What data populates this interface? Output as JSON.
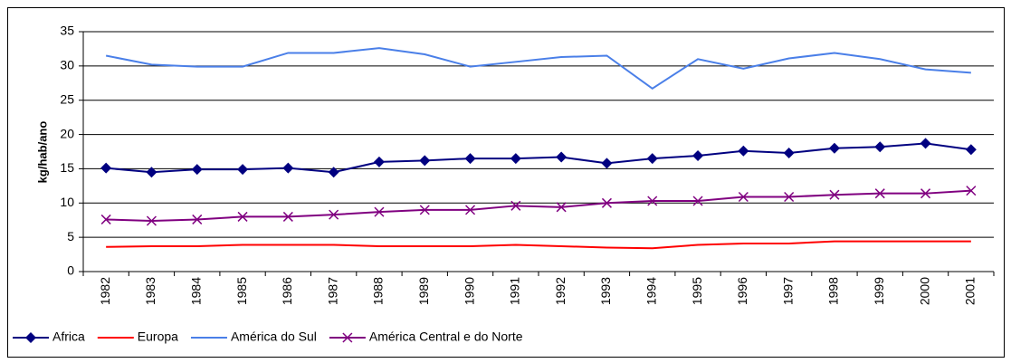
{
  "chart_data": {
    "type": "line",
    "y_label": "kg/hab/ano",
    "categories": [
      "1982",
      "1983",
      "1984",
      "1985",
      "1986",
      "1987",
      "1988",
      "1989",
      "1990",
      "1991",
      "1992",
      "1993",
      "1994",
      "1995",
      "1996",
      "1997",
      "1998",
      "1999",
      "2000",
      "2001"
    ],
    "series": [
      {
        "name": "Africa",
        "color": "#000080",
        "marker": "diamond",
        "values": [
          15.1,
          14.5,
          14.9,
          14.9,
          15.1,
          14.5,
          16.0,
          16.2,
          16.5,
          16.5,
          16.7,
          15.8,
          16.5,
          16.9,
          17.6,
          17.3,
          18.0,
          18.2,
          18.7,
          17.8
        ]
      },
      {
        "name": "Europa",
        "color": "#ff0000",
        "marker": "none",
        "values": [
          3.6,
          3.7,
          3.7,
          3.9,
          3.9,
          3.9,
          3.7,
          3.7,
          3.7,
          3.9,
          3.7,
          3.5,
          3.4,
          3.9,
          4.1,
          4.1,
          4.4,
          4.4,
          4.4,
          4.4
        ]
      },
      {
        "name": "América do Sul",
        "color": "#4a7fe8",
        "marker": "none",
        "values": [
          31.5,
          30.2,
          29.9,
          29.9,
          31.9,
          31.9,
          32.6,
          31.7,
          29.9,
          30.6,
          31.3,
          31.5,
          26.7,
          31.0,
          29.6,
          31.1,
          31.9,
          31.0,
          29.5,
          29.0
        ]
      },
      {
        "name": "América Central e do Norte",
        "color": "#800080",
        "marker": "x",
        "values": [
          7.6,
          7.4,
          7.6,
          8.0,
          8.0,
          8.3,
          8.7,
          9.0,
          9.0,
          9.6,
          9.4,
          10.0,
          10.3,
          10.3,
          10.9,
          10.9,
          11.2,
          11.4,
          11.4,
          11.8
        ]
      }
    ],
    "ylim": [
      0,
      35
    ],
    "yticks": [
      0,
      5,
      10,
      15,
      20,
      25,
      30,
      35
    ],
    "grid": true,
    "legend": "bottom"
  }
}
